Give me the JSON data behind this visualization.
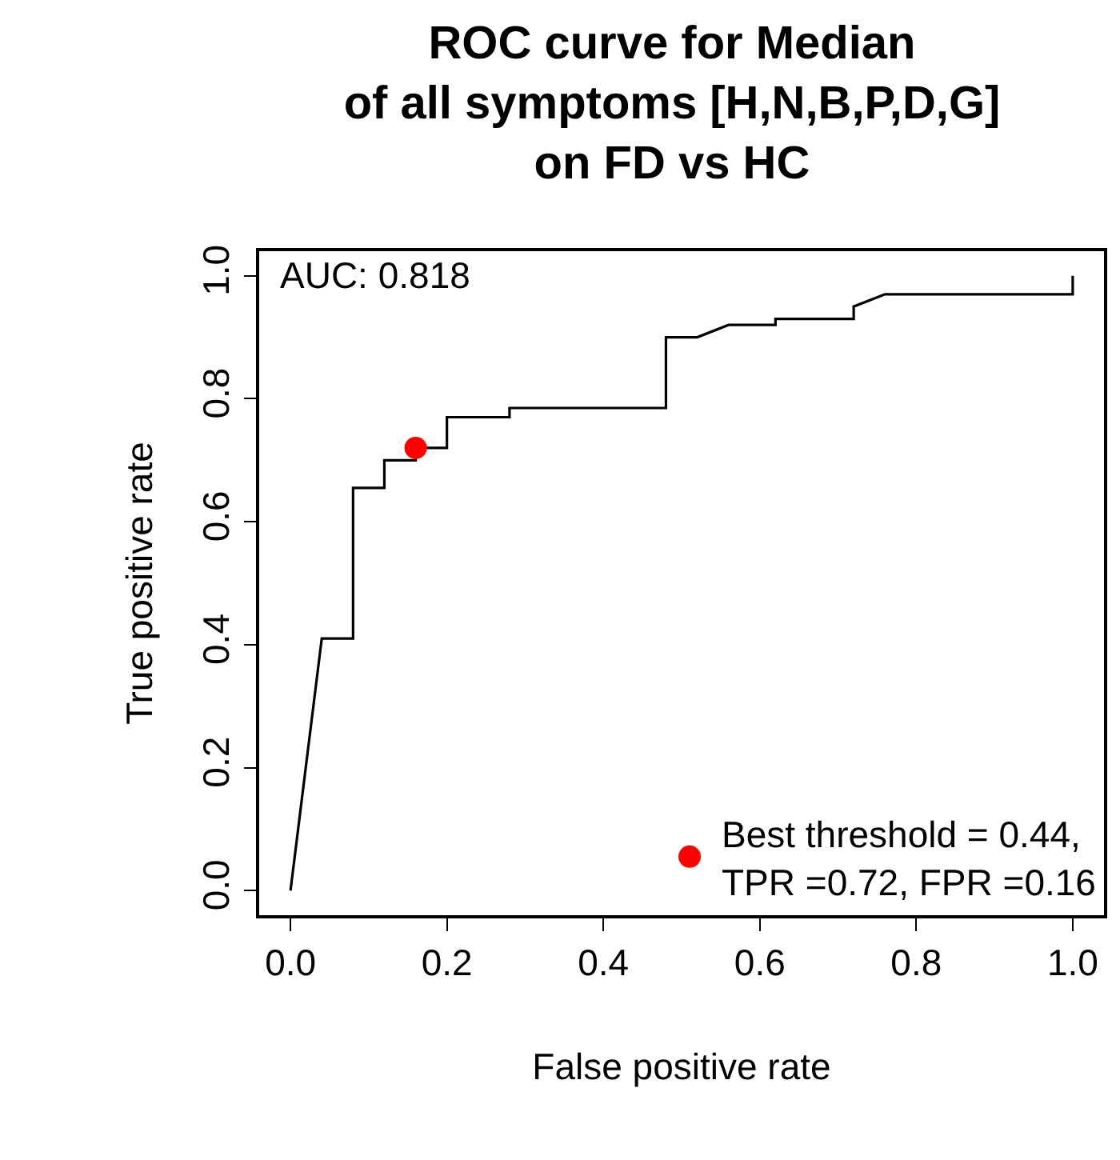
{
  "chart_data": {
    "type": "line",
    "title": "ROC curve for Median\nof all symptoms [H,N,B,P,D,G]\non FD vs HC",
    "xlabel": "False positive rate",
    "ylabel": "True positive rate",
    "annotations": [
      "AUC: 0.818"
    ],
    "series": [
      {
        "color": "#000000",
        "marker": "none",
        "x": [
          0,
          0.04,
          0.08,
          0.08,
          0.12,
          0.12,
          0.16,
          0.16,
          0.2,
          0.2,
          0.28,
          0.28,
          0.48,
          0.48,
          0.52,
          0.56,
          0.62,
          0.62,
          0.72,
          0.72,
          0.76,
          1.0,
          1.0
        ],
        "values": [
          0,
          0.41,
          0.41,
          0.655,
          0.655,
          0.7,
          0.7,
          0.72,
          0.72,
          0.77,
          0.77,
          0.785,
          0.785,
          0.9,
          0.9,
          0.92,
          0.92,
          0.93,
          0.93,
          0.95,
          0.97,
          0.97,
          1.0
        ]
      },
      {
        "type": "scatter",
        "name": "Best threshold = 0.44,\nTPR =0.72, FPR =0.16",
        "color": "#ff0000",
        "marker": "circle",
        "x": [
          0.16
        ],
        "values": [
          0.72
        ]
      }
    ],
    "xlim": [
      -0.04,
      1.04
    ],
    "ylim": [
      -0.04,
      1.04
    ],
    "xticks": [
      {
        "value": 0,
        "label": "0.0"
      },
      0.2,
      0.4,
      0.6,
      0.8,
      {
        "value": 1,
        "label": "1.0"
      }
    ],
    "yticks": [
      {
        "value": 0,
        "label": "0.0"
      },
      0.2,
      0.4,
      0.6,
      0.8,
      {
        "value": 1,
        "label": "1.0"
      }
    ],
    "legend": "bottom right"
  }
}
